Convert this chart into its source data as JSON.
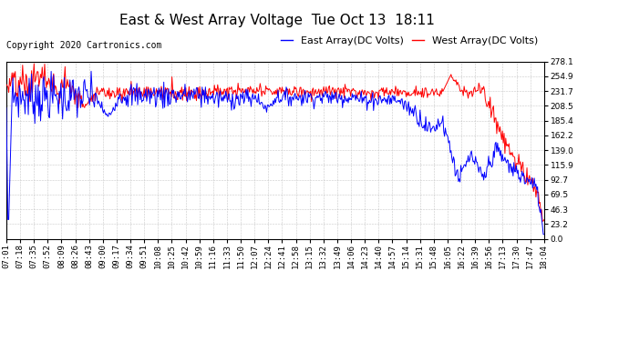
{
  "title": "East & West Array Voltage  Tue Oct 13  18:11",
  "copyright": "Copyright 2020 Cartronics.com",
  "legend_east": "East Array(DC Volts)",
  "legend_west": "West Array(DC Volts)",
  "east_color": "blue",
  "west_color": "red",
  "bg_color": "#ffffff",
  "plot_bg_color": "#ffffff",
  "grid_color": "#bbbbbb",
  "ylim": [
    0.0,
    278.1
  ],
  "yticks": [
    0.0,
    23.2,
    46.3,
    69.5,
    92.7,
    115.9,
    139.0,
    162.2,
    185.4,
    208.5,
    231.7,
    254.9,
    278.1
  ],
  "xtick_labels": [
    "07:01",
    "07:18",
    "07:35",
    "07:52",
    "08:09",
    "08:26",
    "08:43",
    "09:00",
    "09:17",
    "09:34",
    "09:51",
    "10:08",
    "10:25",
    "10:42",
    "10:59",
    "11:16",
    "11:33",
    "11:50",
    "12:07",
    "12:24",
    "12:41",
    "12:58",
    "13:15",
    "13:32",
    "13:49",
    "14:06",
    "14:23",
    "14:40",
    "14:57",
    "15:14",
    "15:31",
    "15:48",
    "16:05",
    "16:22",
    "16:39",
    "16:56",
    "17:13",
    "17:30",
    "17:47",
    "18:04"
  ],
  "line_width": 0.7,
  "title_fontsize": 11,
  "tick_fontsize": 6.5,
  "legend_fontsize": 8,
  "copyright_fontsize": 7
}
